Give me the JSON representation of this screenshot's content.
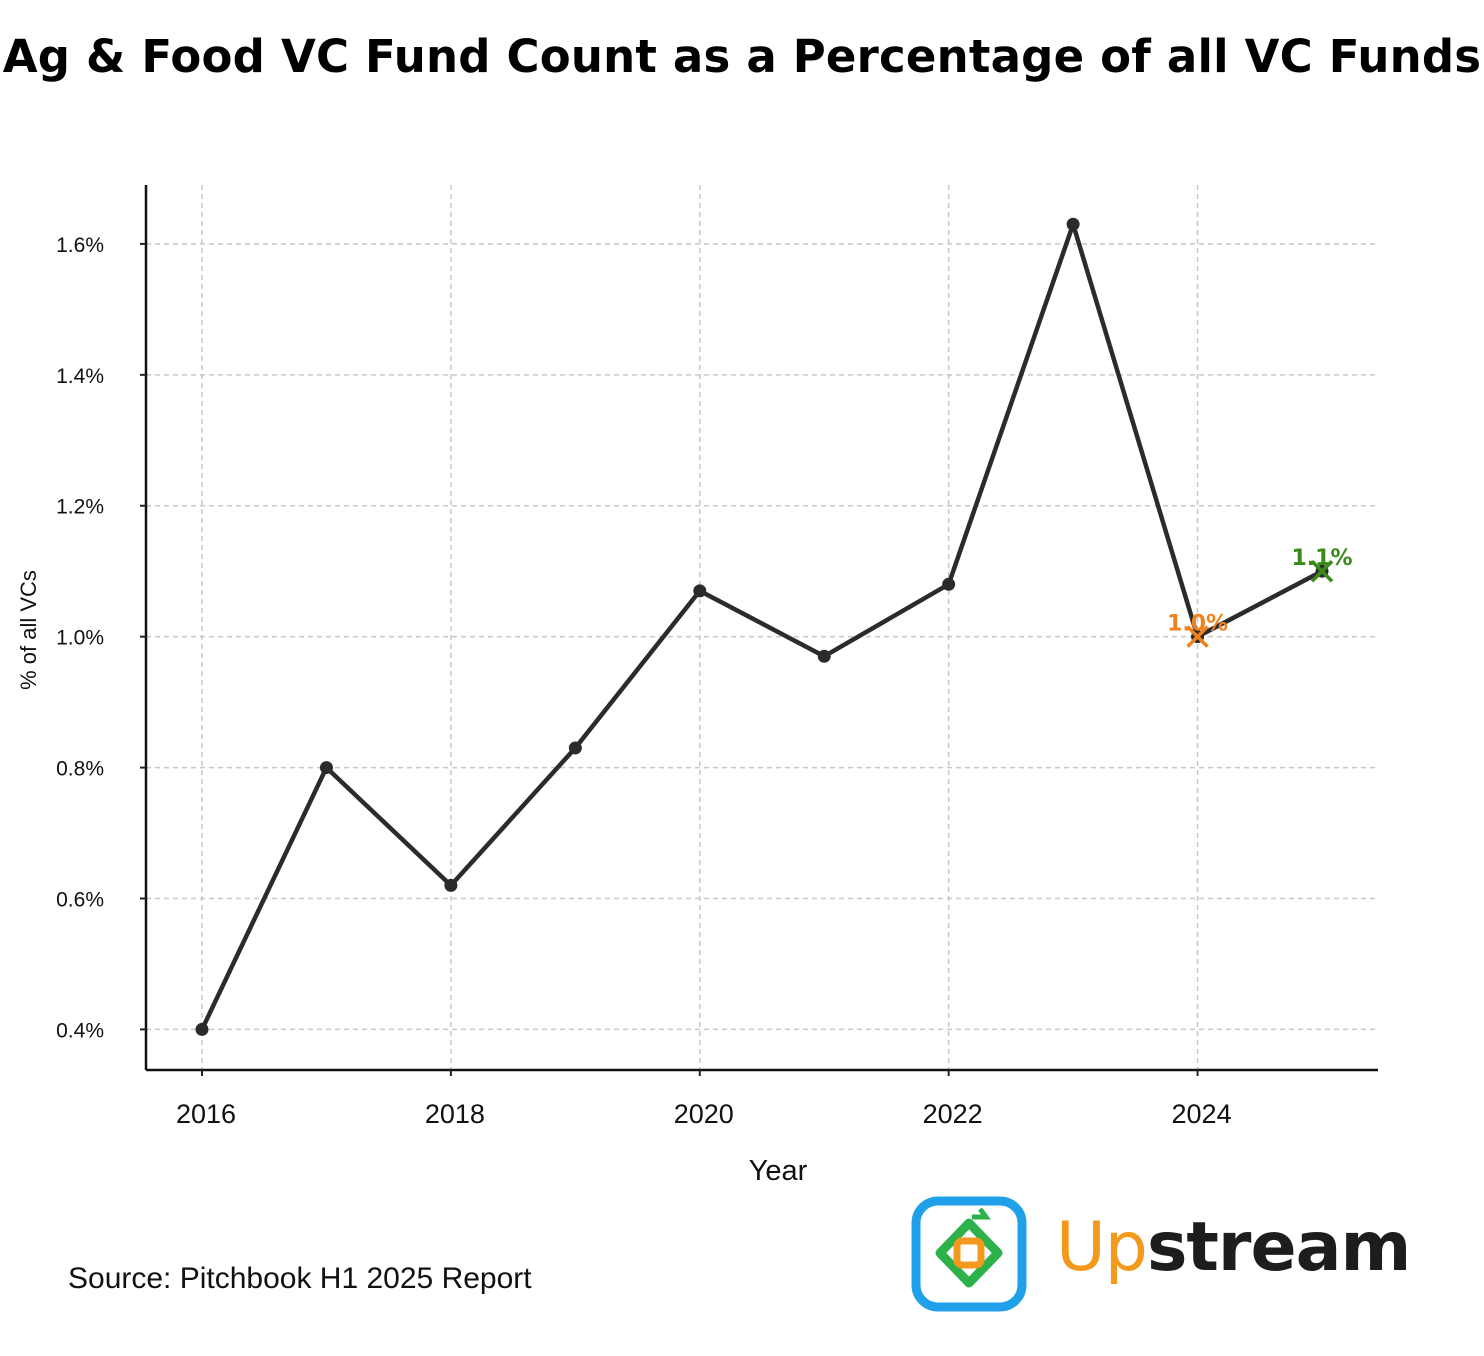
{
  "chart_data": {
    "type": "line",
    "title": "Ag & Food VC Fund Count as a Percentage of all VC Funds",
    "xlabel": "Year",
    "ylabel": "% of all VCs",
    "x": [
      2016,
      2017,
      2018,
      2019,
      2020,
      2021,
      2022,
      2023,
      2024,
      2025
    ],
    "series": [
      {
        "values": [
          0.4,
          0.8,
          0.62,
          0.83,
          1.07,
          0.97,
          1.08,
          1.63,
          1.0,
          1.1
        ],
        "color": "#2b2b2b"
      }
    ],
    "xticks": [
      "2016",
      "2018",
      "2020",
      "2022",
      "2024"
    ],
    "yticks": [
      "0.4%",
      "0.6%",
      "0.8%",
      "1.0%",
      "1.2%",
      "1.4%",
      "1.6%"
    ],
    "xlim": [
      2015.55,
      2025.45
    ],
    "ylim": [
      0.338,
      1.69
    ],
    "grid": true,
    "annotations": [
      {
        "x": 2024,
        "y": 1.0,
        "text": "1.0%",
        "color": "#f0821e",
        "marker": "x"
      },
      {
        "x": 2025,
        "y": 1.1,
        "text": "1.1%",
        "color": "#3a8a1a",
        "marker": "x"
      }
    ]
  },
  "source": "Source: Pitchbook H1 2025 Report",
  "logo": {
    "text_up": "Up",
    "text_stream": "stream",
    "colors": {
      "up": "#f39a1e",
      "stream": "#1d1d1d",
      "border": "#1fa0e8",
      "inner": "#2db14a"
    }
  }
}
